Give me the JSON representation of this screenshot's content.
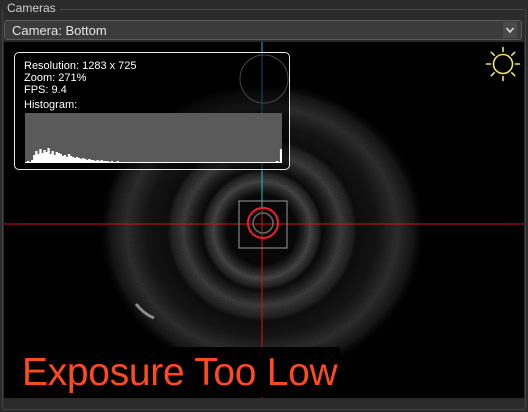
{
  "group": {
    "title": "Cameras"
  },
  "camera_select": {
    "value": "Camera: Bottom"
  },
  "info": {
    "resolution": "Resolution: 1283 x 725",
    "zoom": "Zoom: 271%",
    "fps": "FPS: 9.4",
    "histogram_label": "Histogram:",
    "histogram": [
      1,
      2,
      1,
      3,
      8,
      12,
      9,
      14,
      10,
      13,
      11,
      15,
      9,
      12,
      8,
      11,
      10,
      9,
      7,
      8,
      6,
      9,
      7,
      6,
      5,
      6,
      5,
      4,
      5,
      4,
      3,
      4,
      3,
      3,
      2,
      3,
      2,
      3,
      2,
      2,
      2,
      1,
      2,
      1,
      1,
      2,
      1,
      1,
      1,
      1,
      1,
      1,
      1,
      1,
      1,
      1,
      1,
      1,
      1,
      1,
      1,
      1,
      1,
      1,
      1,
      1,
      1,
      1,
      1,
      1,
      1,
      1,
      1,
      1,
      1,
      1,
      1,
      1,
      1,
      1,
      1,
      1,
      1,
      1,
      1,
      1,
      1,
      1,
      1,
      1,
      1,
      1,
      1,
      1,
      1,
      1,
      1,
      1,
      1,
      1,
      1,
      1,
      1,
      1,
      1,
      1,
      1,
      1,
      1,
      1,
      1,
      1,
      1,
      1,
      1,
      1,
      1,
      1,
      1,
      1,
      1,
      1,
      1,
      2,
      1,
      14
    ]
  },
  "warning": {
    "text": "Exposure Too Low",
    "color": "#ff4a1f"
  },
  "icons": {
    "dropdown": "chevron-down-icon",
    "exposure": "sun-icon"
  },
  "colors": {
    "crosshair_horizontal": "#d21414",
    "crosshair_vertical_top": "#28b4c8",
    "crosshair_vertical_bottom": "#d21414",
    "target_circle": "#e0202a",
    "sun": "#f2e36b"
  }
}
